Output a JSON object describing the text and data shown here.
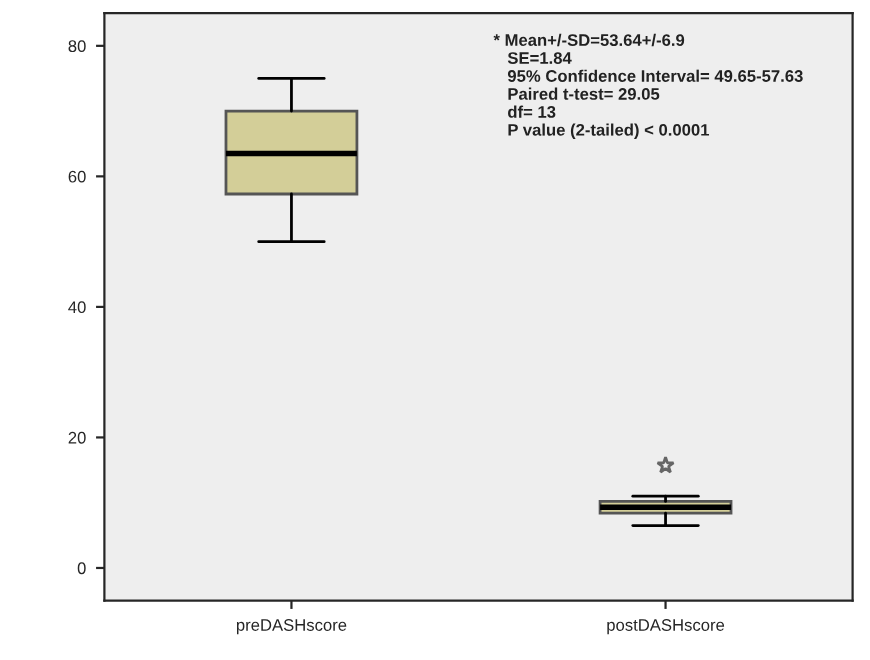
{
  "chart_data": {
    "type": "box",
    "categories": [
      "preDASHscore",
      "postDASHscore"
    ],
    "boxes": [
      {
        "low": 50,
        "q1": 57.3,
        "median": 63.5,
        "q3": 70,
        "high": 75
      },
      {
        "low": 6.5,
        "q1": 8.4,
        "median": 9.3,
        "q3": 10.2,
        "high": 11,
        "outliers": [
          15.7
        ]
      }
    ],
    "color": "#d3ce98",
    "ylim": [
      -5,
      85
    ],
    "yticks": [
      0,
      20,
      40,
      60,
      80
    ],
    "grid": false,
    "marker": "star",
    "annotations": [
      "* Mean+/-SD=53.64+/-6.9\n   SE=1.84\n   95% Confidence Interval= 49.65-57.63\n   Paired t-test= 29.05\n   df= 13\n   P value (2-tailed) < 0.0001"
    ]
  }
}
